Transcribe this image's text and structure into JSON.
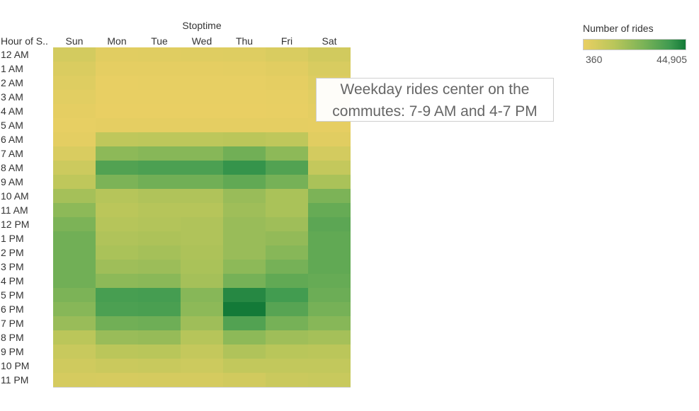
{
  "chart_data": {
    "type": "heatmap",
    "title": "Stoptime",
    "row_header": "Hour of S..",
    "columns": [
      "Sun",
      "Mon",
      "Tue",
      "Wed",
      "Thu",
      "Fri",
      "Sat"
    ],
    "rows": [
      "12 AM",
      "1 AM",
      "2 AM",
      "3 AM",
      "4 AM",
      "5 AM",
      "6 AM",
      "7 AM",
      "8 AM",
      "9 AM",
      "10 AM",
      "11 AM",
      "12 PM",
      "1 PM",
      "2 PM",
      "3 PM",
      "4 PM",
      "5 PM",
      "6 PM",
      "7 PM",
      "8 PM",
      "9 PM",
      "10 PM",
      "11 PM"
    ],
    "values": [
      [
        5500,
        2300,
        2500,
        2700,
        3000,
        4000,
        6000
      ],
      [
        3800,
        1200,
        1300,
        1400,
        1500,
        2300,
        4300
      ],
      [
        2800,
        700,
        750,
        800,
        850,
        1300,
        3100
      ],
      [
        1900,
        500,
        500,
        550,
        560,
        900,
        2200
      ],
      [
        1300,
        400,
        400,
        420,
        430,
        650,
        1500
      ],
      [
        800,
        1200,
        1300,
        1300,
        1400,
        1400,
        1000
      ],
      [
        1500,
        10000,
        10500,
        10500,
        11000,
        10000,
        2300
      ],
      [
        4000,
        19000,
        20000,
        20000,
        24000,
        19000,
        5500
      ],
      [
        7000,
        30000,
        31000,
        31000,
        36000,
        30000,
        9000
      ],
      [
        10000,
        22000,
        24000,
        24000,
        27000,
        23000,
        14000
      ],
      [
        15000,
        12000,
        13000,
        13000,
        17000,
        14000,
        22000
      ],
      [
        19000,
        11000,
        12000,
        12000,
        16000,
        14000,
        26000
      ],
      [
        22000,
        12000,
        12500,
        13000,
        17000,
        16000,
        28000
      ],
      [
        24000,
        13000,
        13500,
        13000,
        17000,
        18000,
        27000
      ],
      [
        24000,
        14000,
        15000,
        13500,
        17000,
        20000,
        27000
      ],
      [
        24000,
        16000,
        16500,
        14000,
        19000,
        23000,
        27000
      ],
      [
        24000,
        19000,
        19500,
        15000,
        23000,
        27000,
        26000
      ],
      [
        22000,
        32000,
        32500,
        20000,
        40000,
        33000,
        25000
      ],
      [
        20000,
        31000,
        31500,
        19000,
        44905,
        29000,
        23000
      ],
      [
        17000,
        24000,
        24500,
        16000,
        30000,
        23000,
        20000
      ],
      [
        11000,
        17000,
        17500,
        12000,
        19000,
        16000,
        15000
      ],
      [
        8000,
        11000,
        11500,
        9000,
        13000,
        11500,
        11000
      ],
      [
        6500,
        7500,
        8000,
        7000,
        9500,
        9500,
        9500
      ],
      [
        5000,
        4800,
        5000,
        4900,
        6000,
        7500,
        8000
      ]
    ],
    "color_scale": {
      "title": "Number of rides",
      "min": 360,
      "max": 44905,
      "min_label": "360",
      "max_label": "44,905",
      "stops": [
        "#e9cf63",
        "#b9c65a",
        "#78b257",
        "#3e9a50",
        "#137a38"
      ]
    },
    "annotation": {
      "line1": "Weekday rides center on the",
      "line2": "commutes: 7-9 AM and 4-7 PM"
    }
  }
}
